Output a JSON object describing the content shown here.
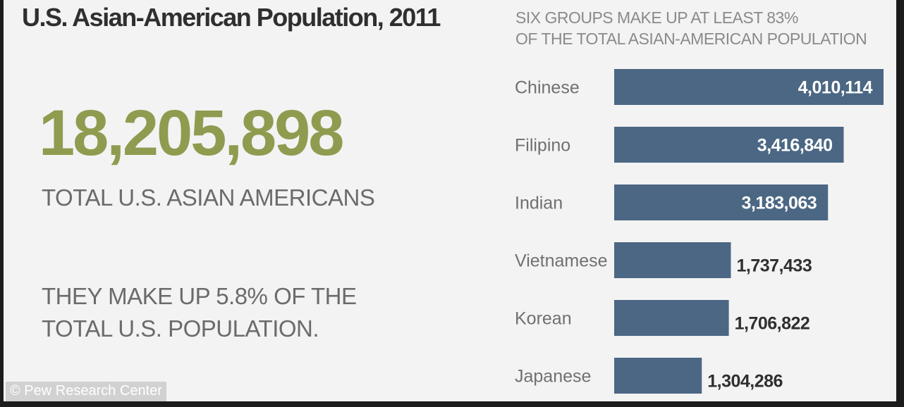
{
  "infographic": {
    "title": "U.S. Asian-American Population, 2011",
    "total": "18,205,898",
    "total_label": "TOTAL U.S. ASIAN AMERICANS",
    "share_lines": [
      "THEY MAKE UP 5.8% OF THE",
      "TOTAL U.S. POPULATION."
    ],
    "credit": "© Pew Research Center"
  },
  "chart_data": {
    "type": "bar",
    "orientation": "horizontal",
    "subtitle_lines": [
      "SIX GROUPS MAKE UP AT LEAST 83%",
      "OF THE TOTAL ASIAN-AMERICAN POPULATION"
    ],
    "categories": [
      "Chinese",
      "Filipino",
      "Indian",
      "Vietnamese",
      "Korean",
      "Japanese"
    ],
    "values": [
      4010114,
      3416840,
      3183063,
      1737433,
      1706822,
      1304286
    ],
    "value_labels": [
      "4,010,114",
      "3,416,840",
      "3,183,063",
      "1,737,433",
      "1,706,822",
      "1,304,286"
    ],
    "xlim": [
      0,
      4010114
    ],
    "bar_color": "#4b6783",
    "label_inside_color": "#ffffff",
    "label_outside_color": "#2f2f2f",
    "grid": false,
    "legend": "none"
  },
  "colors": {
    "accent": "#8f9b4f",
    "background": "#f3f3f3"
  }
}
